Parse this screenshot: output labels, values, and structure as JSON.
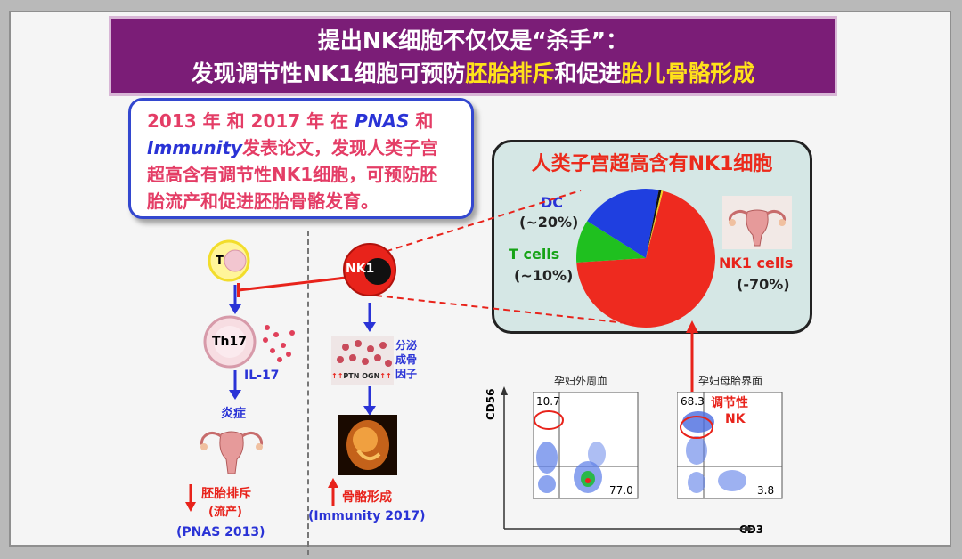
{
  "title": {
    "line1": "提出NK细胞不仅仅是“杀手”：",
    "line2_part1": "发现调节性NK1细胞可预防",
    "line2_hl1": "胚胎排斥",
    "line2_part2": "和促进",
    "line2_hl2": "胎儿骨骼形成"
  },
  "summary": {
    "p1": "2013 年 和 2017 年 在 ",
    "pnas": "PNAS",
    "p2": " 和",
    "immunity": "Immunity",
    "p3": "发表论文，发现人类子宫超高含有调节性NK1细胞，可预防胚胎流产和促进胚胎骨骼发育。"
  },
  "chart_data": {
    "type": "pie",
    "title": "人类子宫超高含有NK1细胞",
    "slices": [
      {
        "label": "NK1 cells",
        "sub": "(-70%)",
        "value": 70,
        "color": "#ee2a1f"
      },
      {
        "label": "T cells",
        "sub": "(~10%)",
        "value": 10,
        "color": "#1fc01f"
      },
      {
        "label": "DC",
        "sub": "(~20%)",
        "value": 19,
        "color": "#1f3fe0"
      },
      {
        "label": "",
        "sub": "",
        "value": 0.6,
        "color": "#111111"
      },
      {
        "label": "",
        "sub": "",
        "value": 0.4,
        "color": "#f0d020"
      }
    ]
  },
  "left_diagram": {
    "t_cell": "T",
    "th17": "Th17",
    "il17": "IL-17",
    "inflammation": "炎症",
    "outcome": "胚胎排斥",
    "outcome_sub": "(流产)",
    "citation": "(PNAS 2013)"
  },
  "middle_diagram": {
    "nk1": "NK1",
    "secrete": "分泌",
    "osteo": "成骨",
    "factor": "因子",
    "ptn": "PTN",
    "ogn": "OGN",
    "arrows": "↑↑",
    "outcome": "骨骼形成",
    "citation": "(Immunity 2017)"
  },
  "flow": {
    "peripheral_title": "孕妇外周血",
    "interface_title": "孕妇母胎界面",
    "y_axis": "CD56",
    "x_axis": "CD3",
    "p1_tl": "10.7",
    "p1_br": "77.0",
    "p2_tl": "68.3",
    "p2_br": "3.8",
    "reg_nk_1": "调节性",
    "reg_nk_2": "NK"
  },
  "colors": {
    "red": "#e8231b",
    "blue": "#2a33d6",
    "purple": "#7b1d77",
    "yellow": "#ffe21a"
  }
}
